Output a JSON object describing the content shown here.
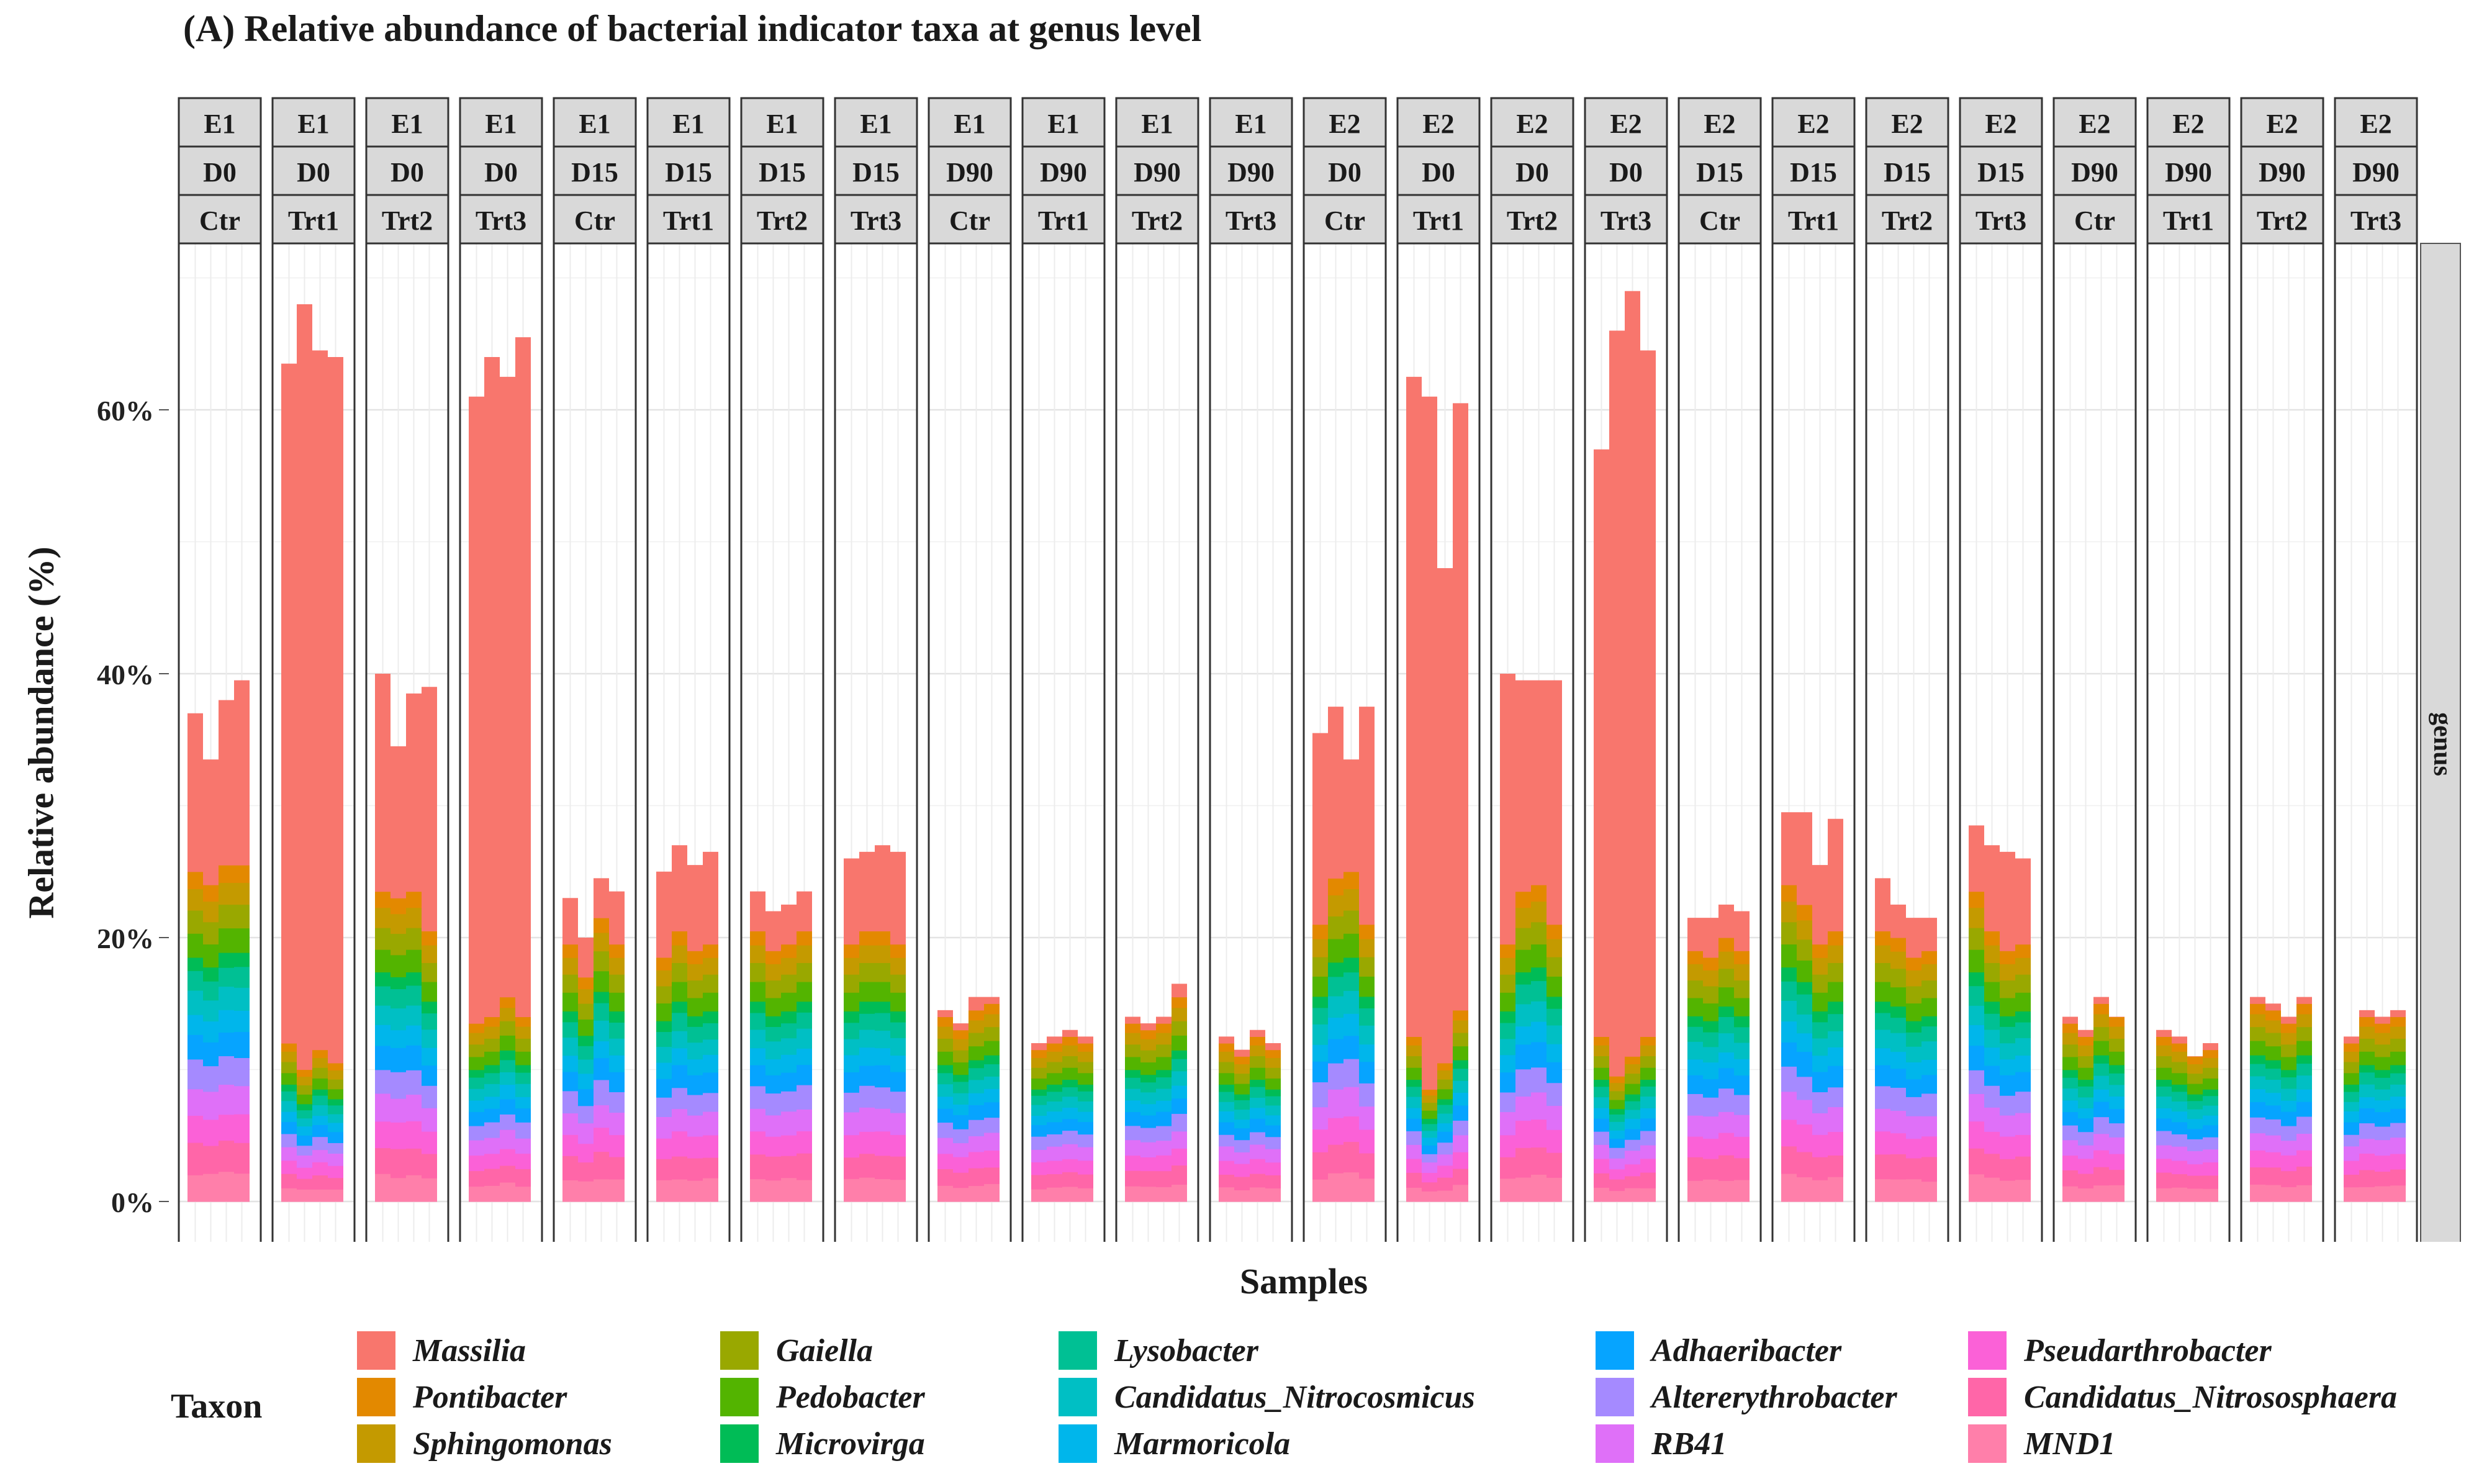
{
  "chart_data": {
    "type": "bar",
    "stacked": true,
    "title": "(A) Relative abundance of bacterial indicator taxa at genus level",
    "xlabel": "Samples",
    "ylabel": "Relative abundance (%)",
    "ylim": [
      0,
      72
    ],
    "yticks": [
      0,
      20,
      40,
      60
    ],
    "ytick_labels": [
      "0%",
      "20%",
      "40%",
      "60%"
    ],
    "strip_right_label": "genus",
    "legend_title": "Taxon",
    "taxa": [
      "Massilia",
      "Pontibacter",
      "Sphingomonas",
      "Gaiella",
      "Pedobacter",
      "Microvirga",
      "Lysobacter",
      "Candidatus_Nitrocosmicus",
      "Marmoricola",
      "Adhaeribacter",
      "Altererythrobacter",
      "RB41",
      "Pseudarthrobacter",
      "Candidatus_Nitrososphaera",
      "MND1"
    ],
    "colors": [
      "#F8766D",
      "#E38900",
      "#C49A00",
      "#99A800",
      "#53B400",
      "#00BC56",
      "#00C094",
      "#00BFC4",
      "#00B6EB",
      "#06A4FF",
      "#A58AFF",
      "#DF70F8",
      "#FB61D7",
      "#FF66A8",
      "#FF7FAA"
    ],
    "panels": [
      {
        "site": "E1",
        "day": "D0",
        "treatment": "Ctr",
        "totals": [
          37,
          33.5,
          38,
          39.5
        ],
        "others": [
          25,
          24,
          25.5,
          25.5
        ]
      },
      {
        "site": "E1",
        "day": "D0",
        "treatment": "Trt1",
        "totals": [
          63.5,
          68,
          64.5,
          64
        ],
        "others": [
          12,
          10,
          11.5,
          10.5
        ]
      },
      {
        "site": "E1",
        "day": "D0",
        "treatment": "Trt2",
        "totals": [
          40,
          34.5,
          38.5,
          39
        ],
        "others": [
          23.5,
          23,
          23.5,
          20.5
        ]
      },
      {
        "site": "E1",
        "day": "D0",
        "treatment": "Trt3",
        "totals": [
          61,
          64,
          62.5,
          65.5
        ],
        "others": [
          13.5,
          14,
          15.5,
          14
        ]
      },
      {
        "site": "E1",
        "day": "D15",
        "treatment": "Ctr",
        "totals": [
          23,
          20,
          24.5,
          23.5
        ],
        "others": [
          19.5,
          17,
          21.5,
          19.5
        ]
      },
      {
        "site": "E1",
        "day": "D15",
        "treatment": "Trt1",
        "totals": [
          25,
          27,
          25.5,
          26.5
        ],
        "others": [
          18.5,
          20.5,
          19,
          19.5
        ]
      },
      {
        "site": "E1",
        "day": "D15",
        "treatment": "Trt2",
        "totals": [
          23.5,
          22,
          22.5,
          23.5
        ],
        "others": [
          20.5,
          19,
          19.5,
          20.5
        ]
      },
      {
        "site": "E1",
        "day": "D15",
        "treatment": "Trt3",
        "totals": [
          26,
          26.5,
          27,
          26.5
        ],
        "others": [
          19.5,
          20.5,
          20.5,
          19.5
        ]
      },
      {
        "site": "E1",
        "day": "D90",
        "treatment": "Ctr",
        "totals": [
          14.5,
          13.5,
          15.5,
          15.5
        ],
        "others": [
          14,
          13,
          14.5,
          15
        ]
      },
      {
        "site": "E1",
        "day": "D90",
        "treatment": "Trt1",
        "totals": [
          12,
          12.5,
          13,
          12.5
        ],
        "others": [
          11.5,
          12,
          12.5,
          12
        ]
      },
      {
        "site": "E1",
        "day": "D90",
        "treatment": "Trt2",
        "totals": [
          14,
          13.5,
          14,
          16.5
        ],
        "others": [
          13.5,
          13,
          13.5,
          15.5
        ]
      },
      {
        "site": "E1",
        "day": "D90",
        "treatment": "Trt3",
        "totals": [
          12.5,
          11.5,
          13,
          12
        ],
        "others": [
          12,
          11,
          12.5,
          11.5
        ]
      },
      {
        "site": "E2",
        "day": "D0",
        "treatment": "Ctr",
        "totals": [
          35.5,
          37.5,
          33.5,
          37.5
        ],
        "others": [
          21,
          24.5,
          25,
          21
        ]
      },
      {
        "site": "E2",
        "day": "D0",
        "treatment": "Trt1",
        "totals": [
          62.5,
          61,
          48,
          60.5
        ],
        "others": [
          12.5,
          8.5,
          10.5,
          14.5
        ]
      },
      {
        "site": "E2",
        "day": "D0",
        "treatment": "Trt2",
        "totals": [
          40,
          39.5,
          39.5,
          39.5
        ],
        "others": [
          19.5,
          23.5,
          24,
          21
        ]
      },
      {
        "site": "E2",
        "day": "D0",
        "treatment": "Trt3",
        "totals": [
          57,
          66,
          69,
          64.5
        ],
        "others": [
          12.5,
          9.5,
          11,
          12.5
        ]
      },
      {
        "site": "E2",
        "day": "D15",
        "treatment": "Ctr",
        "totals": [
          21.5,
          21.5,
          22.5,
          22
        ],
        "others": [
          19,
          18.5,
          20,
          19
        ]
      },
      {
        "site": "E2",
        "day": "D15",
        "treatment": "Trt1",
        "totals": [
          29.5,
          29.5,
          25.5,
          29
        ],
        "others": [
          24,
          22.5,
          19.5,
          20.5
        ]
      },
      {
        "site": "E2",
        "day": "D15",
        "treatment": "Trt2",
        "totals": [
          24.5,
          22.5,
          21.5,
          21.5
        ],
        "others": [
          20.5,
          20,
          18.5,
          19
        ]
      },
      {
        "site": "E2",
        "day": "D15",
        "treatment": "Trt3",
        "totals": [
          28.5,
          27,
          26.5,
          26
        ],
        "others": [
          23.5,
          20.5,
          19,
          19.5
        ]
      },
      {
        "site": "E2",
        "day": "D90",
        "treatment": "Ctr",
        "totals": [
          14,
          13,
          15.5,
          14
        ],
        "others": [
          13.5,
          12.5,
          15,
          14
        ]
      },
      {
        "site": "E2",
        "day": "D90",
        "treatment": "Trt1",
        "totals": [
          13,
          12.5,
          11,
          12
        ],
        "others": [
          12.5,
          12,
          11,
          11.5
        ]
      },
      {
        "site": "E2",
        "day": "D90",
        "treatment": "Trt2",
        "totals": [
          15.5,
          15,
          14,
          15.5
        ],
        "others": [
          15,
          14.5,
          13.5,
          15
        ]
      },
      {
        "site": "E2",
        "day": "D90",
        "treatment": "Trt3",
        "totals": [
          12.5,
          14.5,
          14,
          14.5
        ],
        "others": [
          12,
          14,
          13.5,
          14
        ]
      }
    ],
    "base_proportions": [
      0.12,
      0.12,
      0.11,
      0.12,
      0.11,
      0.1,
      0.09,
      0.09,
      0.08,
      0.06
    ]
  }
}
